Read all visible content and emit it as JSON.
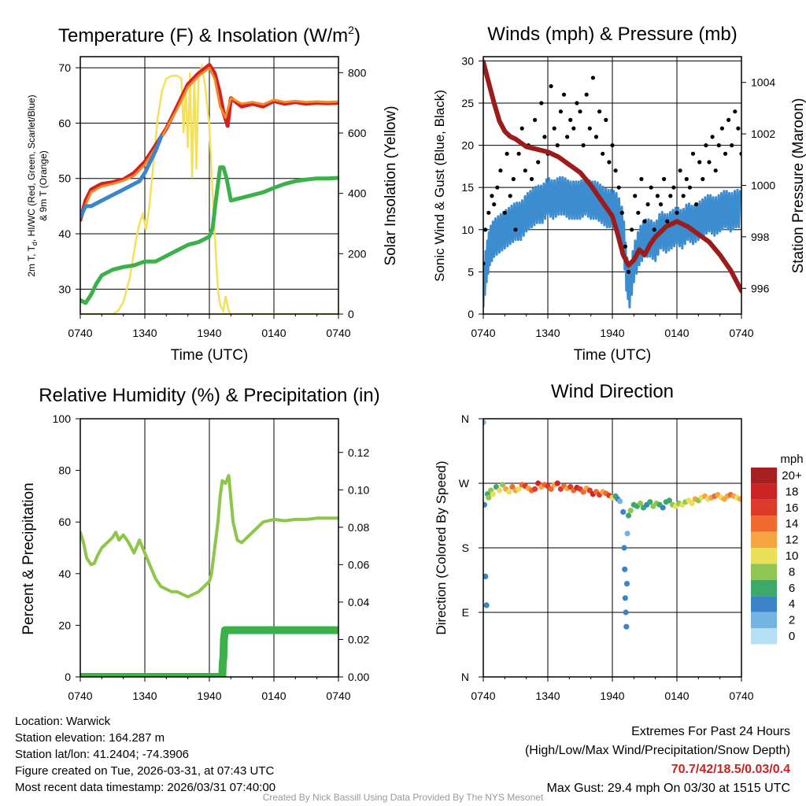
{
  "chart_data": [
    {
      "id": "temp",
      "type": "line",
      "title": "Temperature (F) & Insolation (W/m",
      "title_sup": "2",
      "title_end": ")",
      "ylabel": "2m T, T",
      "ylabel_sub": "d",
      "ylabel_rest": ", HI/WC (Red, Green, Scarlet/Blue)",
      "ylabel2": "& 9m T (Orange)",
      "y2label": "Solar Insolation (Yellow)",
      "xlabel": "Time (UTC)",
      "x_ticks": [
        "0740",
        "1340",
        "1940",
        "0140",
        "0740"
      ],
      "ylim": [
        25.5,
        72
      ],
      "y_ticks": [
        30,
        40,
        50,
        60,
        70
      ],
      "y2lim": [
        0,
        853
      ],
      "y2_ticks": [
        0,
        200,
        400,
        600,
        800
      ],
      "series": [
        {
          "name": "2m T",
          "color": "#d42020",
          "x": [
            0,
            0.5,
            1,
            2,
            3,
            4,
            5,
            6,
            7,
            8,
            9,
            10,
            11,
            12,
            12.5,
            12.9,
            13.3,
            13.7,
            14,
            15,
            16,
            17,
            18,
            19,
            20,
            21,
            22,
            23,
            24
          ],
          "y": [
            42.5,
            46,
            48,
            49,
            49.3,
            49.8,
            51,
            53,
            56,
            59,
            63,
            67,
            69,
            70.5,
            69,
            66,
            62,
            59.5,
            64.5,
            63,
            63.5,
            63,
            64,
            63.5,
            63.8,
            63.5,
            63.7,
            63.6,
            63.7
          ]
        },
        {
          "name": "9m T",
          "color": "#f08a2a",
          "x": [
            0,
            1,
            2,
            3,
            4,
            5,
            6,
            7,
            8,
            9,
            10,
            11,
            12,
            12.5,
            13,
            13.5,
            14,
            15,
            16,
            17,
            18,
            19,
            20,
            21,
            22,
            23,
            24
          ],
          "y": [
            43,
            47.5,
            48.6,
            49,
            49.6,
            50.5,
            52.5,
            55.5,
            59,
            62.5,
            66.5,
            68.5,
            70,
            68,
            63,
            61,
            64.5,
            63.5,
            63.8,
            63.4,
            64.2,
            63.8,
            64,
            63.8,
            63.9,
            63.8,
            63.9
          ]
        },
        {
          "name": "Dewpoint",
          "color": "#3cb04a",
          "x": [
            0,
            0.5,
            1,
            1.5,
            2,
            3,
            4,
            5,
            6,
            7,
            8,
            9,
            10,
            11,
            11.5,
            12,
            12.3,
            12.6,
            13,
            13.3,
            13.6,
            14,
            15,
            16,
            17,
            18,
            19,
            20,
            21,
            22,
            23,
            24
          ],
          "y": [
            28,
            27.5,
            29,
            31,
            32.5,
            33.5,
            34,
            34.3,
            35,
            35,
            36,
            37,
            38,
            38.5,
            39,
            39.5,
            41,
            46,
            52,
            52,
            50,
            46,
            46.5,
            47,
            47.5,
            48.3,
            49,
            49.5,
            49.8,
            50,
            50,
            50.1
          ]
        },
        {
          "name": "HI/WC",
          "color": "#3c84cc",
          "x": [
            0,
            0.5,
            1,
            1.5,
            2,
            3,
            4,
            5,
            5.5,
            6,
            6.5,
            7,
            7.5
          ],
          "y": [
            43,
            45,
            45,
            45.5,
            46,
            47,
            48,
            49,
            49.5,
            51,
            53,
            55,
            57.5
          ]
        }
      ],
      "insolation": {
        "name": "Solar Insolation",
        "color": "#f3e15a",
        "x": [
          0,
          3,
          3.5,
          4,
          4.6,
          5.2,
          5.5,
          5.8,
          6.1,
          6.4,
          6.8,
          7.2,
          7.6,
          8,
          8.5,
          9,
          9.4,
          9.6,
          9.8,
          10,
          10.2,
          10.4,
          10.6,
          10.8,
          11,
          11.3,
          11.6,
          12,
          12.3,
          12.6,
          12.8,
          13,
          13.3,
          13.5,
          13.8,
          14,
          14.3,
          24
        ],
        "y": [
          0,
          0,
          10,
          40,
          120,
          250,
          300,
          330,
          280,
          350,
          500,
          650,
          740,
          780,
          790,
          790,
          780,
          600,
          760,
          550,
          800,
          450,
          790,
          480,
          790,
          820,
          760,
          620,
          400,
          200,
          80,
          30,
          10,
          60,
          10,
          0,
          0,
          0
        ]
      }
    },
    {
      "id": "winds",
      "type": "scatter",
      "title": "Winds (mph) & Pressure (mb)",
      "ylabel": "Sonic Wind & Gust (Blue, Black)",
      "y2label": "Station Pressure (Maroon)",
      "xlabel": "Time (UTC)",
      "x_ticks": [
        "0740",
        "1340",
        "1940",
        "0140",
        "0740"
      ],
      "ylim": [
        0,
        30.5
      ],
      "y_ticks": [
        0,
        5,
        10,
        15,
        20,
        25,
        30
      ],
      "y2lim": [
        995,
        1005
      ],
      "y2_ticks": [
        996,
        998,
        1000,
        1002,
        1004
      ],
      "wind": {
        "name": "Sonic Wind",
        "color": "#3c8cd0",
        "x": [
          0,
          0.3,
          0.6,
          1,
          1.5,
          2,
          2.5,
          3,
          3.5,
          4,
          4.5,
          5,
          5.5,
          6,
          6.5,
          7,
          7.5,
          8,
          8.5,
          9,
          9.5,
          10,
          10.5,
          11,
          11.5,
          12,
          12.5,
          13,
          13.3,
          13.6,
          14,
          14.5,
          15,
          15.5,
          16,
          16.5,
          17,
          17.5,
          18,
          18.5,
          19,
          19.5,
          20,
          20.5,
          21,
          21.5,
          22,
          22.5,
          23,
          23.5,
          24
        ],
        "y": [
          3,
          6,
          8,
          9,
          9.5,
          10,
          10.5,
          11,
          11,
          12,
          12.5,
          13,
          13,
          14,
          13.5,
          14,
          14,
          13.5,
          13.5,
          13.5,
          14,
          13.5,
          13.5,
          13,
          12.5,
          12.5,
          12,
          10,
          5,
          3,
          6,
          8,
          9,
          9,
          8.5,
          10,
          9.5,
          10,
          10.5,
          10,
          11,
          10.5,
          11,
          11.5,
          12,
          11.5,
          12,
          12.5,
          12,
          12.5,
          12.5
        ]
      },
      "gusts": {
        "name": "Gust",
        "color": "#000000",
        "x": [
          0,
          0.2,
          0.5,
          0.8,
          1,
          1.3,
          1.6,
          2,
          2.2,
          2.5,
          2.8,
          3,
          3.3,
          3.6,
          3.9,
          4.2,
          4.5,
          4.8,
          5.1,
          5.4,
          5.7,
          6,
          6.3,
          6.6,
          6.9,
          7.2,
          7.5,
          7.8,
          8.1,
          8.4,
          8.7,
          9,
          9.3,
          9.6,
          9.9,
          10.2,
          10.5,
          10.8,
          11.1,
          11.4,
          11.7,
          12,
          12.3,
          12.6,
          12.9,
          13.2,
          13.5,
          13.8,
          14.1,
          14.4,
          14.7,
          15,
          15.3,
          15.6,
          15.9,
          16.2,
          16.5,
          16.8,
          17.1,
          17.4,
          17.7,
          18,
          18.3,
          18.6,
          18.9,
          19.2,
          19.5,
          19.8,
          20.1,
          20.4,
          20.7,
          21,
          21.3,
          21.6,
          21.9,
          22.2,
          22.5,
          22.8,
          23.1,
          23.4,
          23.7,
          24
        ],
        "y": [
          6,
          10,
          12,
          14,
          13,
          15,
          17,
          12,
          19,
          14,
          16,
          10,
          19,
          22,
          17,
          20,
          16,
          23,
          18,
          25,
          21,
          19,
          27,
          22,
          20,
          24,
          26,
          21,
          23,
          22,
          25,
          24,
          20,
          26,
          22,
          28,
          21,
          24,
          19,
          23,
          18,
          20,
          17,
          15,
          12,
          8,
          5,
          10,
          14,
          12,
          16,
          11,
          13,
          15,
          10,
          14,
          13,
          16,
          11,
          14,
          15,
          12,
          17,
          14,
          16,
          15,
          19,
          13,
          18,
          16,
          20,
          18,
          21,
          17,
          20,
          22,
          19,
          23,
          20,
          24,
          22,
          19
        ]
      },
      "pressure": {
        "name": "Station Pressure",
        "color": "#9c1c1c",
        "x": [
          0,
          0.5,
          1,
          1.5,
          2,
          2.5,
          3,
          4,
          5,
          6,
          7,
          8,
          9,
          10,
          11,
          12,
          12.5,
          13,
          13.5,
          14,
          14.5,
          15,
          15.5,
          16,
          16.5,
          17,
          18,
          19,
          20,
          21,
          22,
          23,
          24
        ],
        "y": [
          1004.8,
          1004,
          1003.2,
          1002.5,
          1002.1,
          1001.9,
          1001.8,
          1001.5,
          1001.4,
          1001.3,
          1001.1,
          1000.8,
          1000.5,
          1000,
          999.4,
          998.8,
          998.1,
          997.3,
          996.9,
          997.1,
          997.5,
          997.3,
          997.7,
          998,
          998.2,
          998.4,
          998.6,
          998.4,
          998.1,
          997.8,
          997.3,
          996.7,
          995.9
        ]
      }
    },
    {
      "id": "rh",
      "type": "line",
      "title": "Relative Humidity (%) & Precipitation (in)",
      "ylabel": "Percent & Precipitation",
      "x_ticks": [
        "0740",
        "1340",
        "1940",
        "0140",
        "0740"
      ],
      "ylim": [
        0,
        100
      ],
      "y_ticks": [
        0,
        20,
        40,
        60,
        80,
        100
      ],
      "y2lim": [
        0,
        0.138
      ],
      "y2_ticks": [
        "0.00",
        "0.02",
        "0.04",
        "0.06",
        "0.08",
        "0.10",
        "0.12"
      ],
      "rh": {
        "name": "Relative Humidity",
        "color": "#8dc649",
        "x": [
          0,
          0.3,
          0.6,
          1,
          1.3,
          1.6,
          2,
          2.5,
          3,
          3.3,
          3.6,
          4,
          4.5,
          5,
          5.5,
          6,
          6.5,
          7,
          7.5,
          8,
          8.5,
          9,
          9.5,
          10,
          10.5,
          11,
          11.5,
          12,
          12.2,
          12.5,
          12.8,
          13,
          13.2,
          13.5,
          13.8,
          14.2,
          14.6,
          15,
          15.5,
          16,
          17,
          18,
          19,
          20,
          21,
          22,
          23,
          24
        ],
        "y": [
          56,
          52,
          46,
          43.5,
          44,
          47,
          50,
          52,
          54,
          56,
          53,
          55,
          52,
          48,
          53,
          48,
          43,
          38,
          35,
          34,
          33,
          33,
          32,
          31,
          32,
          33,
          35,
          37,
          40,
          50,
          60,
          70,
          76,
          75,
          78,
          60,
          53,
          52,
          54,
          56,
          60,
          61,
          60.5,
          61,
          61,
          61.5,
          61.5,
          61.5
        ]
      },
      "precip": {
        "name": "Precipitation",
        "color": "#3cb04a",
        "x": [
          0,
          13.2,
          13.25,
          13.3,
          13.35,
          13.45,
          13.55,
          24
        ],
        "y": [
          0,
          0,
          0.008,
          0.01,
          0.02,
          0.025,
          0.025,
          0.025
        ]
      }
    },
    {
      "id": "wdir",
      "type": "scatter",
      "title": "Wind Direction",
      "ylabel": "Direction (Colored By Speed)",
      "x_ticks": [
        "0740",
        "1340",
        "1940",
        "0140",
        "0740"
      ],
      "y_ticks": [
        "N",
        "E",
        "S",
        "W",
        "N"
      ],
      "ylim": [
        0,
        360
      ],
      "legend_title": "mph",
      "legend_labels": [
        "20+",
        "18",
        "16",
        "14",
        "12",
        "10",
        "8",
        "6",
        "4",
        "2",
        "0"
      ],
      "legend_colors": [
        "#a52020",
        "#cc2424",
        "#dd3a2a",
        "#ee6a2e",
        "#f7a442",
        "#eadf58",
        "#8fc653",
        "#3ca869",
        "#3c84c8",
        "#74b4e2",
        "#b6def5"
      ],
      "points_x": [
        0,
        0.1,
        0.2,
        0.3,
        0.4,
        0.5,
        0.7,
        0.9,
        1.2,
        1.5,
        1.8,
        2.1,
        2.4,
        2.7,
        3,
        3.3,
        3.6,
        3.9,
        4.2,
        4.5,
        4.8,
        5.1,
        5.4,
        5.7,
        6,
        6.3,
        6.6,
        6.9,
        7.2,
        7.5,
        7.8,
        8.1,
        8.4,
        8.7,
        9,
        9.3,
        9.6,
        9.9,
        10.2,
        10.5,
        10.8,
        11.1,
        11.4,
        11.7,
        12,
        12.3,
        12.5,
        12.7,
        13.0,
        13.1,
        13.15,
        13.2,
        13.25,
        13.3,
        13.35,
        13.4,
        13.5,
        13.7,
        14,
        14.3,
        14.6,
        14.9,
        15.2,
        15.5,
        15.8,
        16.1,
        16.4,
        16.7,
        17,
        17.3,
        17.6,
        17.9,
        18.2,
        18.5,
        18.8,
        19.1,
        19.4,
        19.7,
        20,
        20.3,
        20.6,
        20.9,
        21.2,
        21.5,
        21.8,
        22.1,
        22.4,
        22.7,
        23,
        23.3,
        23.6,
        23.9
      ],
      "points_y": [
        355,
        240,
        140,
        100,
        255,
        250,
        260,
        255,
        265,
        260,
        268,
        262,
        258,
        265,
        260,
        262,
        268,
        266,
        263,
        260,
        262,
        270,
        265,
        268,
        266,
        262,
        268,
        270,
        262,
        266,
        263,
        265,
        260,
        264,
        262,
        258,
        263,
        260,
        255,
        258,
        254,
        258,
        256,
        253,
        250,
        252,
        248,
        245,
        230,
        180,
        150,
        110,
        90,
        70,
        130,
        200,
        225,
        232,
        240,
        238,
        242,
        236,
        240,
        244,
        238,
        242,
        240,
        236,
        244,
        246,
        240,
        238,
        242,
        240,
        244,
        246,
        242,
        248,
        246,
        250,
        252,
        248,
        250,
        252,
        254,
        250,
        248,
        252,
        254,
        252,
        250,
        248
      ],
      "points_s": [
        2,
        4,
        4,
        4,
        6,
        8,
        8,
        10,
        6,
        10,
        8,
        12,
        10,
        14,
        12,
        10,
        14,
        16,
        12,
        14,
        16,
        18,
        12,
        14,
        16,
        14,
        12,
        18,
        16,
        14,
        12,
        16,
        14,
        18,
        16,
        14,
        12,
        16,
        18,
        14,
        16,
        12,
        14,
        16,
        10,
        6,
        4,
        2,
        4,
        3,
        3,
        4,
        4,
        3,
        3,
        2,
        6,
        8,
        6,
        6,
        8,
        6,
        4,
        6,
        8,
        8,
        6,
        4,
        6,
        6,
        8,
        10,
        8,
        10,
        8,
        10,
        10,
        12,
        8,
        10,
        12,
        10,
        12,
        14,
        12,
        10,
        12,
        12,
        14,
        12,
        10,
        12
      ]
    }
  ],
  "info": {
    "location": "Location: Warwick",
    "elevation": "Station elevation: 164.287 m",
    "latlon": "Station lat/lon: 41.2404; -74.3906",
    "created": "Figure created on Tue, 2026-03-31, at 07:43 UTC",
    "recent": "Most recent data timestamp: 2026/03/31 07:40:00"
  },
  "extremes": {
    "title": "Extremes For Past 24 Hours",
    "fields": "(High/Low/Max Wind/Precipitation/Snow Depth)",
    "values": "70.7/42/18.5/0.03/0.4",
    "gust": "Max Gust: 29.4 mph On 03/30 at 1515 UTC"
  },
  "credit": "Created By Nick Bassill Using Data Provided By The NYS Mesonet"
}
